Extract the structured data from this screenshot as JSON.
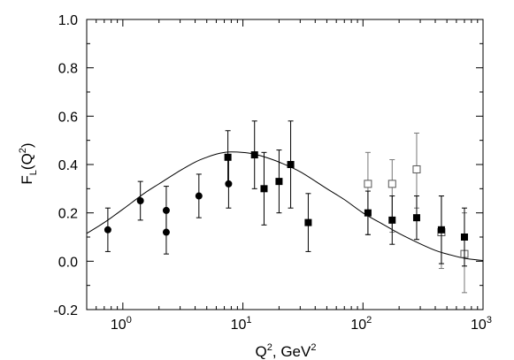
{
  "chart_data": {
    "type": "scatter",
    "xlabel": {
      "main": "Q",
      "sup": "2",
      "rest": ", GeV",
      "sup2": "2"
    },
    "ylabel": {
      "main": "F",
      "sub": "L",
      "rest": "(Q",
      "sup": "2",
      "close": ")"
    },
    "xscale": "log",
    "xlim": [
      0.5,
      1000
    ],
    "ylim": [
      -0.2,
      1.0
    ],
    "grid": false,
    "yticks": [
      "-0.2",
      "0.0",
      "0.2",
      "0.4",
      "0.6",
      "0.8",
      "1.0"
    ],
    "xticks": [
      {
        "value": 1,
        "base": "10",
        "exp": "0"
      },
      {
        "value": 10,
        "base": "10",
        "exp": "1"
      },
      {
        "value": 100,
        "base": "10",
        "exp": "2"
      },
      {
        "value": 1000,
        "base": "10",
        "exp": "3"
      }
    ],
    "series": [
      {
        "marker": "filled-circle",
        "points": [
          {
            "x": 0.75,
            "y": 0.13,
            "lo": 0.04,
            "hi": 0.22
          },
          {
            "x": 1.4,
            "y": 0.25,
            "lo": 0.17,
            "hi": 0.33
          },
          {
            "x": 2.3,
            "y": 0.21,
            "lo": 0.12,
            "hi": 0.31
          },
          {
            "x": 2.3,
            "y": 0.12,
            "lo": 0.03,
            "hi": 0.21
          },
          {
            "x": 4.3,
            "y": 0.27,
            "lo": 0.18,
            "hi": 0.36
          },
          {
            "x": 7.6,
            "y": 0.32,
            "lo": 0.22,
            "hi": 0.42
          }
        ]
      },
      {
        "marker": "filled-square",
        "points": [
          {
            "x": 7.5,
            "y": 0.43,
            "lo": 0.32,
            "hi": 0.54
          },
          {
            "x": 12.5,
            "y": 0.44,
            "lo": 0.3,
            "hi": 0.58
          },
          {
            "x": 15,
            "y": 0.3,
            "lo": 0.15,
            "hi": 0.45
          },
          {
            "x": 20,
            "y": 0.33,
            "lo": 0.2,
            "hi": 0.46
          },
          {
            "x": 25,
            "y": 0.4,
            "lo": 0.22,
            "hi": 0.58
          },
          {
            "x": 35,
            "y": 0.16,
            "lo": 0.04,
            "hi": 0.28
          },
          {
            "x": 110,
            "y": 0.2,
            "lo": 0.11,
            "hi": 0.29
          },
          {
            "x": 175,
            "y": 0.17,
            "lo": 0.07,
            "hi": 0.27
          },
          {
            "x": 280,
            "y": 0.18,
            "lo": 0.09,
            "hi": 0.27
          },
          {
            "x": 450,
            "y": 0.13,
            "lo": -0.01,
            "hi": 0.27
          },
          {
            "x": 700,
            "y": 0.1,
            "lo": -0.02,
            "hi": 0.22
          }
        ]
      },
      {
        "marker": "open-square",
        "points": [
          {
            "x": 110,
            "y": 0.32,
            "lo": 0.11,
            "hi": 0.45
          },
          {
            "x": 175,
            "y": 0.32,
            "lo": 0.12,
            "hi": 0.42
          },
          {
            "x": 280,
            "y": 0.38,
            "lo": 0.22,
            "hi": 0.53
          },
          {
            "x": 450,
            "y": 0.12,
            "lo": -0.03,
            "hi": 0.27
          },
          {
            "x": 700,
            "y": 0.03,
            "lo": -0.13,
            "hi": 0.2
          }
        ]
      }
    ],
    "curve": {
      "points": [
        [
          0.5,
          0.115
        ],
        [
          0.7,
          0.16
        ],
        [
          1.0,
          0.215
        ],
        [
          1.5,
          0.28
        ],
        [
          2.0,
          0.32
        ],
        [
          3.0,
          0.375
        ],
        [
          4.0,
          0.41
        ],
        [
          5.0,
          0.43
        ],
        [
          6.0,
          0.443
        ],
        [
          7.0,
          0.45
        ],
        [
          8.0,
          0.452
        ],
        [
          10,
          0.45
        ],
        [
          12,
          0.445
        ],
        [
          15,
          0.432
        ],
        [
          20,
          0.41
        ],
        [
          30,
          0.37
        ],
        [
          50,
          0.3
        ],
        [
          70,
          0.255
        ],
        [
          100,
          0.2
        ],
        [
          150,
          0.15
        ],
        [
          200,
          0.115
        ],
        [
          300,
          0.072
        ],
        [
          400,
          0.045
        ],
        [
          500,
          0.03
        ],
        [
          700,
          0.012
        ],
        [
          1000,
          0.003
        ]
      ]
    }
  }
}
